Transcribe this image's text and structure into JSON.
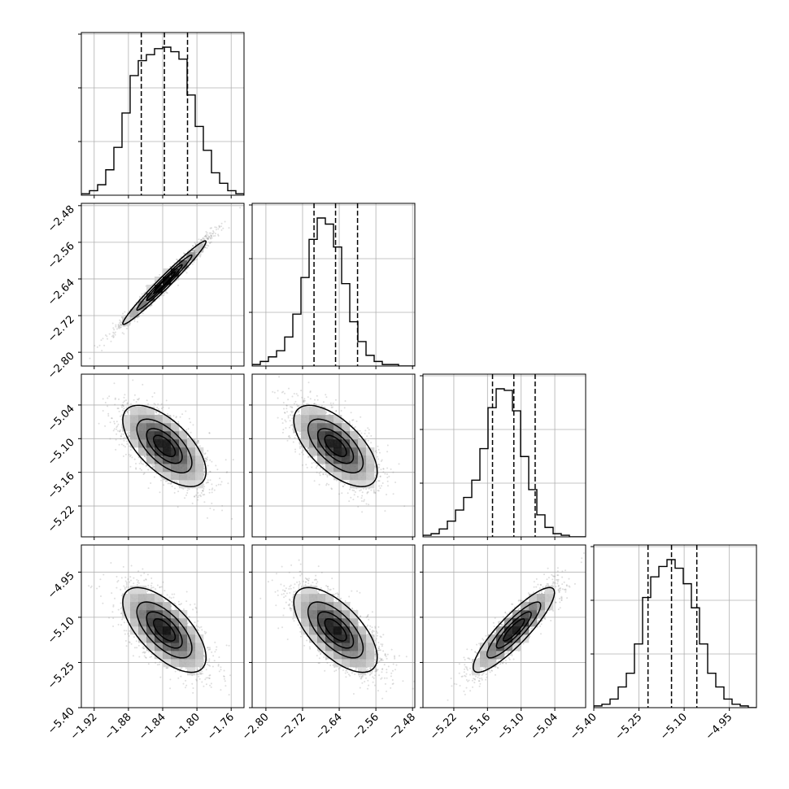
{
  "chart_data": {
    "type": "corner",
    "grid": true,
    "variables": [
      {
        "range": [
          -1.935,
          -1.745
        ],
        "ticks": [
          -1.92,
          -1.88,
          -1.84,
          -1.8,
          -1.76
        ],
        "tick_labels": [
          "−1.92",
          "−1.88",
          "−1.84",
          "−1.80",
          "−1.76"
        ],
        "mean": -1.838,
        "sd": 0.0235,
        "quantiles": [
          -1.865,
          -1.838,
          -1.811
        ],
        "hist_counts": [
          0.01,
          0.03,
          0.07,
          0.17,
          0.32,
          0.55,
          0.8,
          0.9,
          0.94,
          0.98,
          0.99,
          0.96,
          0.91,
          0.67,
          0.46,
          0.3,
          0.15,
          0.08,
          0.03,
          0.01
        ]
      },
      {
        "range": [
          -2.83,
          -2.475
        ],
        "ticks": [
          -2.8,
          -2.72,
          -2.64,
          -2.56,
          -2.48
        ],
        "tick_labels": [
          "−2.80",
          "−2.72",
          "−2.64",
          "−2.56",
          "−2.48"
        ],
        "mean": -2.648,
        "sd": 0.044,
        "quantiles": [
          -2.695,
          -2.648,
          -2.6
        ],
        "hist_counts": [
          0.01,
          0.03,
          0.06,
          0.1,
          0.19,
          0.34,
          0.58,
          0.83,
          0.97,
          0.93,
          0.78,
          0.54,
          0.29,
          0.16,
          0.07,
          0.03,
          0.01,
          0.01,
          0.0,
          0.0
        ]
      },
      {
        "range": [
          -5.275,
          -4.985
        ],
        "ticks": [
          -5.22,
          -5.16,
          -5.1,
          -5.04
        ],
        "tick_labels": [
          "−5.22",
          "−5.16",
          "−5.10",
          "−5.04"
        ],
        "mean": -5.113,
        "sd": 0.035,
        "quantiles": [
          -5.151,
          -5.113,
          -5.075
        ],
        "hist_counts": [
          0.01,
          0.02,
          0.05,
          0.1,
          0.17,
          0.25,
          0.36,
          0.56,
          0.82,
          0.94,
          0.93,
          0.8,
          0.51,
          0.3,
          0.14,
          0.06,
          0.02,
          0.01,
          0.0,
          0.0
        ]
      },
      {
        "range": [
          -5.4,
          -4.86
        ],
        "ticks": [
          -5.4,
          -5.25,
          -5.1,
          -4.95
        ],
        "tick_labels": [
          "−5.40",
          "−5.25",
          "−5.10",
          "−4.95"
        ],
        "mean": -5.142,
        "sd": 0.068,
        "quantiles": [
          -5.22,
          -5.142,
          -5.058
        ],
        "hist_counts": [
          0.01,
          0.02,
          0.05,
          0.12,
          0.2,
          0.37,
          0.64,
          0.76,
          0.82,
          0.86,
          0.81,
          0.72,
          0.58,
          0.37,
          0.2,
          0.12,
          0.05,
          0.02,
          0.01,
          0.0
        ]
      }
    ],
    "correlations": [
      [
        1.0,
        0.98,
        -0.63,
        -0.65
      ],
      [
        0.98,
        1.0,
        -0.63,
        -0.65
      ],
      [
        -0.63,
        -0.63,
        1.0,
        0.88
      ],
      [
        -0.65,
        -0.65,
        0.88,
        1.0
      ]
    ],
    "contour_levels_sigma": [
      0.5,
      1.0,
      1.5,
      2.0
    ]
  }
}
